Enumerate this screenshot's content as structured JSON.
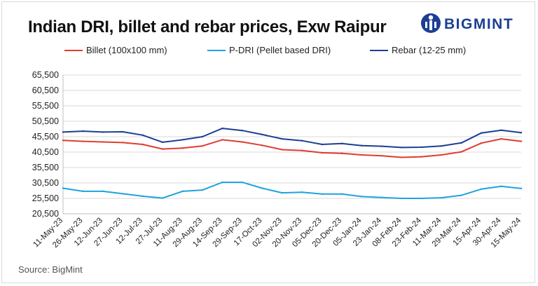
{
  "title": "Indian DRI, billet and rebar prices, Exw Raipur",
  "brand": {
    "name": "BIGMINT",
    "color": "#1c3f94",
    "icon": "bigmint-logo-icon"
  },
  "source": "Source: BigMint",
  "chart_data": {
    "type": "line",
    "title": "Indian DRI, billet and rebar prices, Exw Raipur",
    "xlabel": "",
    "ylabel": "",
    "ylim": [
      20500,
      65500
    ],
    "y_ticks": [
      "65,500",
      "60,500",
      "55,500",
      "50,500",
      "45,500",
      "40,500",
      "35,500",
      "30,500",
      "25,500",
      "20,500"
    ],
    "x": [
      "11-May-23",
      "26-May-23",
      "12-Jun-23",
      "27-Jun-23",
      "12-Jul-23",
      "27-Jul-23",
      "11-Aug-23",
      "29-Aug-23",
      "14-Sep-23",
      "29-Sep-23",
      "17-Oct-23",
      "02-Nov-23",
      "20-Nov-23",
      "05-Dec-23",
      "20-Dec-23",
      "05-Jan-24",
      "23-Jan-24",
      "08-Feb-24",
      "23-Feb-24",
      "11-Mar-24",
      "29-Mar-24",
      "15-Apr-24",
      "30-Apr-24",
      "15-May-24"
    ],
    "grid": "horizontal",
    "legend_position": "top",
    "series": [
      {
        "name": "Billet (100x100 mm)",
        "color": "#e03c31",
        "values": [
          44300,
          44000,
          43800,
          43600,
          43000,
          41500,
          41800,
          42500,
          44500,
          43800,
          42700,
          41300,
          41000,
          40300,
          40100,
          39600,
          39300,
          38800,
          39000,
          39600,
          40600,
          43400,
          44800,
          44000
        ]
      },
      {
        "name": "P-DRI (Pellet based DRI)",
        "color": "#1fa3dc",
        "values": [
          28800,
          27800,
          27800,
          27000,
          26200,
          25600,
          27800,
          28200,
          30700,
          30700,
          28800,
          27300,
          27500,
          26900,
          26900,
          26100,
          25800,
          25500,
          25500,
          25700,
          26500,
          28500,
          29400,
          28700
        ]
      },
      {
        "name": "Rebar (12-25 mm)",
        "color": "#1c3f94",
        "values": [
          47000,
          47300,
          47000,
          47100,
          46000,
          43700,
          44500,
          45500,
          48200,
          47500,
          46200,
          44800,
          44200,
          43000,
          43300,
          42600,
          42400,
          42000,
          42100,
          42500,
          43500,
          46700,
          47600,
          46800
        ]
      }
    ]
  }
}
